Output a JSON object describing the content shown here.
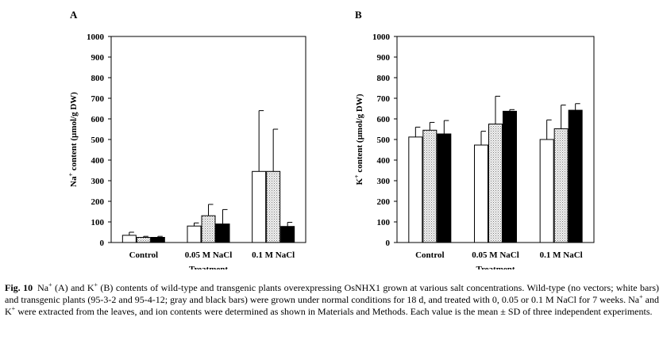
{
  "figure": {
    "panels": [
      "A",
      "B"
    ],
    "caption": {
      "label": "Fig. 10",
      "segments": [
        {
          "t": "Na"
        },
        {
          "t": "+",
          "sup": true
        },
        {
          "t": " (A) and K"
        },
        {
          "t": "+",
          "sup": true
        },
        {
          "t": " (B) contents of wild-type and transgenic plants overexpressing OsNHX1 grown at various salt concentrations. Wild-type (no vectors; white bars) and transgenic plants (95-3-2 and 95-4-12; gray and black bars) were grown under normal conditions for 18 d, and treated with 0, 0.05 or 0.1 M NaCl for 7 weeks. Na"
        },
        {
          "t": "+",
          "sup": true
        },
        {
          "t": " and K"
        },
        {
          "t": "+",
          "sup": true
        },
        {
          "t": " were extracted from the leaves, and ion contents were determined as shown in Materials and Methods. Each value is the mean ± SD of three independent experiments."
        }
      ]
    }
  },
  "chart_data": [
    {
      "type": "bar",
      "panel": "A",
      "xlabel": "Treatment",
      "ylabel": "Na+ content (µmol/g DW)",
      "ylabel_parts": [
        {
          "t": "Na"
        },
        {
          "t": "+",
          "sup": true
        },
        {
          "t": " content (µmol/g DW)"
        }
      ],
      "ylim": [
        0,
        1000
      ],
      "yticks": [
        0,
        100,
        200,
        300,
        400,
        500,
        600,
        700,
        800,
        900,
        1000
      ],
      "categories": [
        "Control",
        "0.05 M NaCl",
        "0.1 M NaCl"
      ],
      "grid": false,
      "series": [
        {
          "fill": "white",
          "values": [
            35,
            80,
            345
          ],
          "errors": [
            15,
            15,
            295
          ]
        },
        {
          "fill": "gray",
          "values": [
            25,
            130,
            345
          ],
          "errors": [
            5,
            55,
            205
          ]
        },
        {
          "fill": "black",
          "values": [
            25,
            90,
            78
          ],
          "errors": [
            5,
            70,
            20
          ]
        }
      ]
    },
    {
      "type": "bar",
      "panel": "B",
      "xlabel": "Treatment",
      "ylabel": "K+ content (µmol/g DW)",
      "ylabel_parts": [
        {
          "t": "K"
        },
        {
          "t": "+",
          "sup": true
        },
        {
          "t": " content (µmol/g DW)"
        }
      ],
      "ylim": [
        0,
        1000
      ],
      "yticks": [
        0,
        100,
        200,
        300,
        400,
        500,
        600,
        700,
        800,
        900,
        1000
      ],
      "categories": [
        "Control",
        "0.05 M NaCl",
        "0.1 M NaCl"
      ],
      "grid": false,
      "series": [
        {
          "fill": "white",
          "values": [
            512,
            473,
            500
          ],
          "errors": [
            48,
            67,
            95
          ]
        },
        {
          "fill": "gray",
          "values": [
            545,
            575,
            552
          ],
          "errors": [
            38,
            135,
            115
          ]
        },
        {
          "fill": "black",
          "values": [
            527,
            637,
            642
          ],
          "errors": [
            65,
            8,
            32
          ]
        }
      ]
    }
  ]
}
